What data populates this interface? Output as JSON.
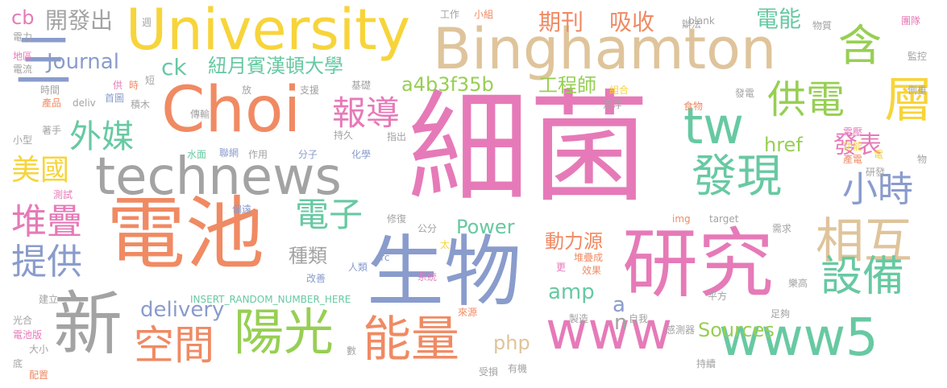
{
  "palette": {
    "pink": "#e67ab8",
    "blue": "#8a9ccc",
    "orange": "#f08a63",
    "gray": "#a3a3a3",
    "yellow": "#f7d43a",
    "tan": "#dfc49b",
    "green": "#67c9a2",
    "lime": "#97cf53"
  },
  "words": {
    "w_xijun": "細菌",
    "w_shengwu": "生物",
    "w_dianchi": "電池",
    "w_yanjiu": "研究",
    "w_binghamton": "Binghamton",
    "w_university": "University",
    "w_choi": "Choi",
    "w_technews": "technews",
    "w_xin": "新",
    "w_www5": "www5",
    "w_www": "www",
    "w_yangguang": "陽光",
    "w_nengliang": "能量",
    "w_kongjian": "空間",
    "w_xianghu": "相互",
    "w_ceng": "層",
    "w_han": "含",
    "w_tw": "tw",
    "w_gongdian": "供電",
    "w_faxian": "發現",
    "w_shebei": "設備",
    "w_dianzi": "電子",
    "w_xiaoshi": "小時",
    "w_duidie": "堆疊",
    "w_tigong": "提供",
    "w_waimei": "外媒",
    "w_meiguo": "美國",
    "w_baodao": "報導",
    "w_san": "三",
    "w_hex": "a4b3f35b",
    "w_gongchengshi": "工程師",
    "w_niuyue": "紐月賓漢頓大學",
    "w_journal": "Journal",
    "w_kaifachu": "開發出",
    "w_cb": "cb",
    "w_ck": "ck",
    "w_qikan": "期刊",
    "w_xishou": "吸收",
    "w_dianneng": "電能",
    "w_fabiao": "發表",
    "w_href": "href",
    "w_zhonglei": "種類",
    "w_power": "Power",
    "w_donglyuan": "動力源",
    "w_amp": "amp",
    "w_delivery": "delivery",
    "w_a": "a",
    "w_n": "n",
    "w_sources": "Sources",
    "w_php": "php",
    "w_dianli": "電力",
    "w_diqu": "地區",
    "w_dianliu": "電流",
    "w_shijian": "時間",
    "w_chanpin": "產品",
    "w_deliv": "deliv",
    "w_shouye": "首圖",
    "w_jimu": "積木",
    "w_gong": "供",
    "w_shi": "時",
    "w_duan": "短",
    "w_fang": "放",
    "w_zhiyuan": "支援",
    "w_jichu": "基礎",
    "w_zhuanshou": "著手",
    "w_xiaoxing": "小型",
    "w_chuanyu": "傳輸",
    "w_lianwang": "聯網",
    "w_zuoyong": "作用",
    "w_fenzi": "分子",
    "w_shuimian": "水面",
    "w_chixu": "持久",
    "w_huaxue": "化學",
    "w_zhichu": "指出",
    "w_ceshi": "測試",
    "w_pianyuan": "偏遠",
    "w_xiufu": "修復",
    "w_gongfen": "公分",
    "w_tai": "太",
    "w_renlei": "人類",
    "w_src": "src",
    "w_xitong": "系統",
    "w_gaishan": "改善",
    "w_geng": "更",
    "w_insert": "INSERT_RANDOM_NUMBER_HERE",
    "w_jianli": "建立",
    "w_guanghe": "光合",
    "w_dianchiban": "電池版",
    "w_daxiao": "大小",
    "w_di": "底",
    "w_peizhi": "配置",
    "w_shu": "數",
    "w_shousun": "受損",
    "w_youji": "有機",
    "w_laiyuan": "來源",
    "w_zhizao": "製造",
    "w_ziwo": "自我",
    "w_gongzuo": "工作",
    "w_xiaozu": "小組",
    "w_zhou": "週",
    "w_banfa": "辦法",
    "w_blank": "_blank",
    "w_wuzhi": "物質",
    "w_tuandui": "團隊",
    "w_jiankong": "監控",
    "w_cezhong": "側重",
    "w_zuhe": "組合",
    "w_piaofu": "漂浮",
    "w_fadian": "發電",
    "w_shiwu": "食物",
    "w_dianya": "電壓",
    "w_gongneng": "功能",
    "w_chandian": "產電",
    "w_dian": "電",
    "w_yanfa": "研發",
    "w_wu": "物",
    "w_duidiecheng": "堆疊成",
    "w_xiaoguo": "效果",
    "w_img": "img",
    "w_target": "target",
    "w_xuqiu": "需求",
    "w_legao": "樂高",
    "w_pingfang": "平方",
    "w_zugou": "足夠",
    "w_ganceqi": "感測器",
    "w_chixu2": "持續"
  }
}
